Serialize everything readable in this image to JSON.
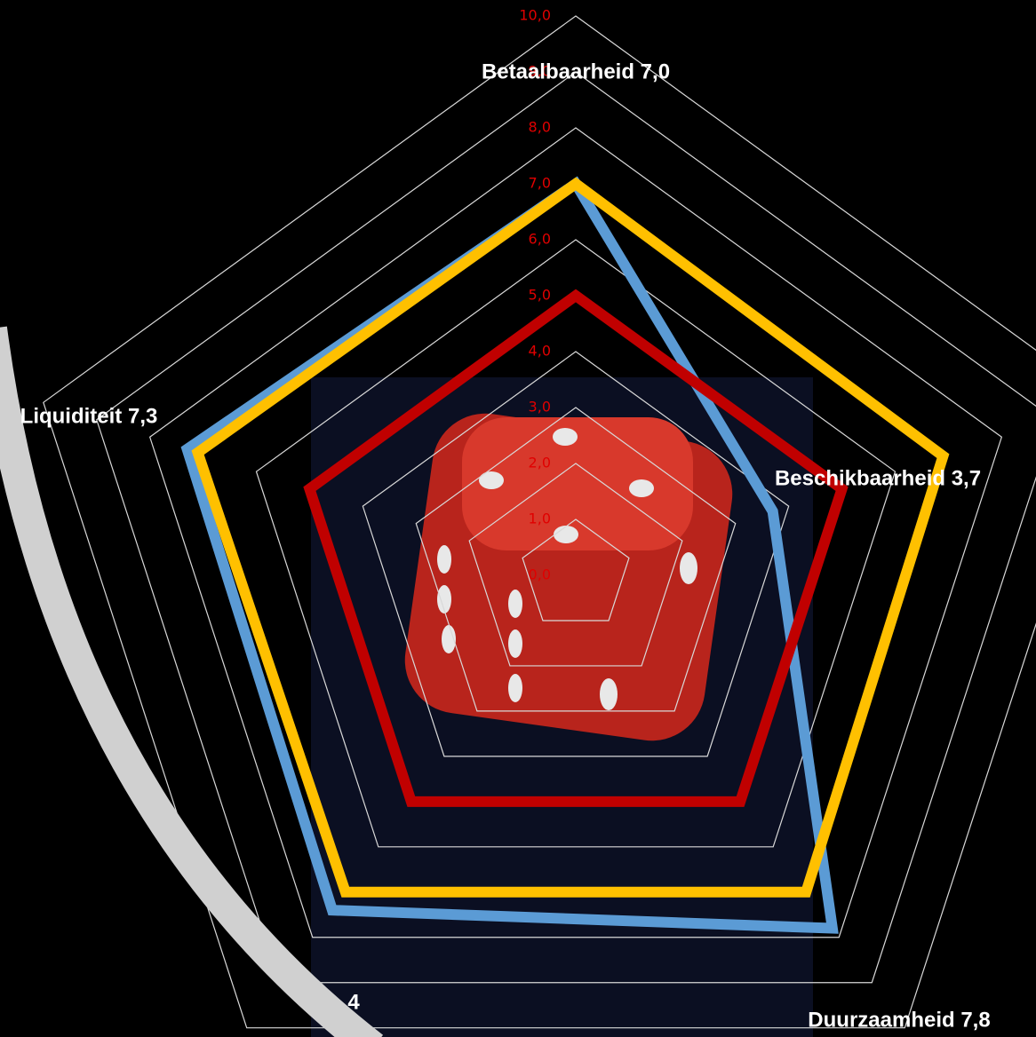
{
  "chart_data": {
    "type": "radar",
    "categories": [
      "Betaalbaarheid 7,0",
      "Beschikbaarheid 3,7",
      "Duurzaamheid 7,8",
      "4",
      "Liquiditeit 7,3"
    ],
    "series": [
      {
        "color": "#5b9bd5",
        "values": [
          7.0,
          3.7,
          7.8,
          7.4,
          7.3
        ]
      },
      {
        "color": "#ffc000",
        "values": [
          7.0,
          6.9,
          7.0,
          7.0,
          7.1
        ]
      },
      {
        "color": "#c00000",
        "values": [
          5.0,
          5.0,
          5.0,
          5.0,
          5.0
        ]
      }
    ],
    "rlim": [
      0,
      10
    ],
    "rticks": [
      {
        "value": 0,
        "label": "0,0"
      },
      {
        "value": 1,
        "label": "1,0"
      },
      {
        "value": 2,
        "label": "2,0"
      },
      {
        "value": 3,
        "label": "3,0"
      },
      {
        "value": 4,
        "label": "4,0"
      },
      {
        "value": 5,
        "label": "5,0"
      },
      {
        "value": 6,
        "label": "6,0"
      },
      {
        "value": 7,
        "label": "7,0"
      },
      {
        "value": 8,
        "label": "8,0"
      },
      {
        "value": 9,
        "label": "9,0"
      },
      {
        "value": 10,
        "label": "10,0"
      }
    ],
    "grid": true
  }
}
